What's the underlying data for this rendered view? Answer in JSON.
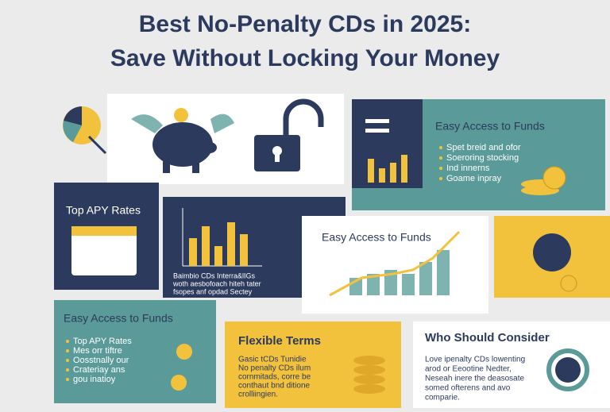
{
  "header": {
    "title_lines": [
      "Best No-Penalty CDs in 2025:",
      "Save Without Locking Your Money"
    ]
  },
  "panels": {
    "top_right": {
      "title": "Easy Access to Funds",
      "bullets": [
        "Spet breid and ofor",
        "Soeroring stocking",
        "Ind innerns",
        "Goame inpray"
      ]
    },
    "top_apy": {
      "title": "Top APY Rates"
    },
    "dark_chart": {
      "lines": [
        "Baimbio CDs Interra&lIGs",
        "woth aesbofoach hiteh tater",
        "fsopes anf opdad Sectey"
      ]
    },
    "middle_white": {
      "title": "Easy Access to Funds"
    },
    "bottom_left": {
      "title": "Easy Access to Funds",
      "bullets": [
        "Top APY Rates",
        "Mes orr tiftre",
        "Oosstnally our",
        "Crateriay ans",
        "gou inatioy"
      ]
    },
    "flexible": {
      "title": "Flexible Terms",
      "lines": [
        "Gasic tCDs Tunidie",
        "No penalty CDs ilum",
        "cornmitads, corre be",
        "conthaut bnd ditione",
        "crolliingien."
      ]
    },
    "who": {
      "title": "Who Should Consider",
      "lines": [
        "Love ipenalty CDs lowenting",
        "arod or Eeootine Nedter,",
        "Neseah inere the deasosate",
        "somed ofterens and avo",
        "comparie."
      ]
    }
  }
}
